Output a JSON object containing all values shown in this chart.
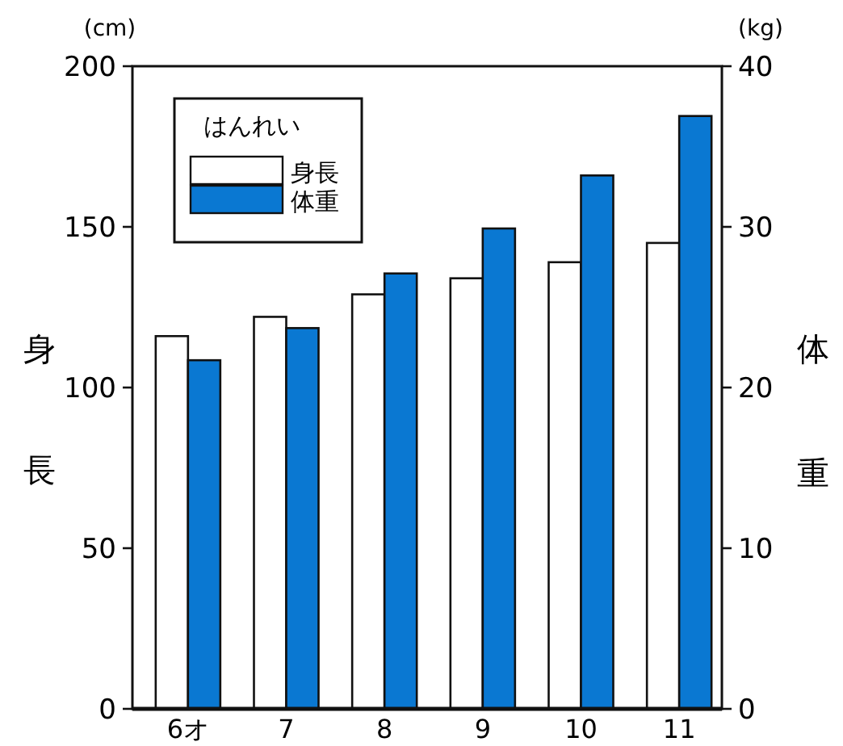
{
  "chart_data": {
    "type": "bar",
    "categories": [
      "6オ",
      "7",
      "8",
      "9",
      "10",
      "11"
    ],
    "series": [
      {
        "name": "身長",
        "color": "#ffffff",
        "values": [
          116,
          122,
          129,
          134,
          139,
          145
        ]
      },
      {
        "name": "体重",
        "color": "#0a78d2",
        "axis": "y2",
        "values": [
          21.7,
          23.7,
          27.1,
          29.9,
          33.2,
          36.9
        ]
      }
    ],
    "ylim": [
      0,
      200
    ],
    "yticks": [
      0,
      50,
      100,
      150,
      200
    ],
    "y2lim": [
      0,
      40
    ],
    "y2ticks": [
      0,
      10,
      20,
      30,
      40
    ],
    "ylabel": "身長",
    "y2label": "体重",
    "legend": "top left",
    "legend_title": "はんれい",
    "annotations": [
      "(cm)",
      "(kg)"
    ]
  }
}
